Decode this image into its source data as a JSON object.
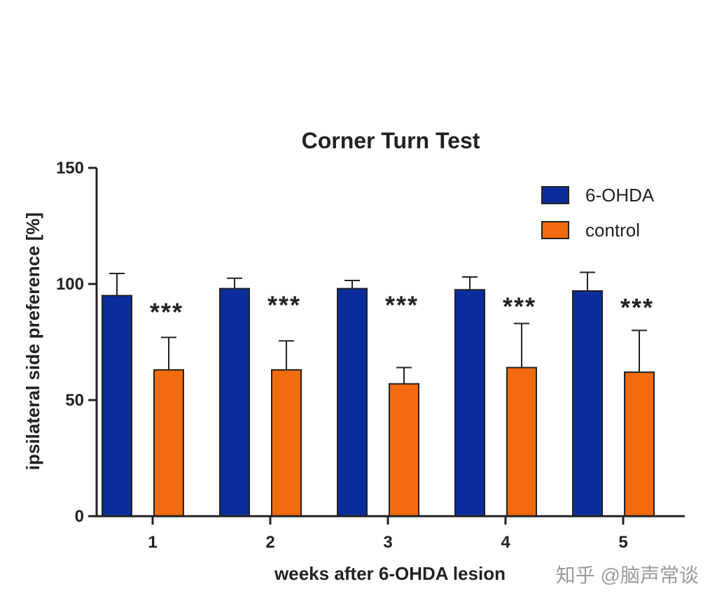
{
  "chart_data": {
    "type": "bar",
    "title": "Corner Turn Test",
    "xlabel": "weeks after 6-OHDA lesion",
    "ylabel": "ipsilateral side preference [%]",
    "ylim": [
      0,
      150
    ],
    "yticks": [
      "0",
      "50",
      "100",
      "150"
    ],
    "categories": [
      "1",
      "2",
      "3",
      "4",
      "5"
    ],
    "series": [
      {
        "name": "6-OHDA",
        "color": "#0a2d9c",
        "values": [
          95,
          98,
          98,
          97.5,
          97
        ],
        "errors": [
          9.5,
          4.5,
          3.5,
          5.5,
          8
        ]
      },
      {
        "name": "control",
        "color": "#f26b0f",
        "values": [
          63,
          63,
          57,
          64,
          62
        ],
        "errors": [
          14,
          12.5,
          7,
          19,
          18
        ]
      }
    ],
    "significance": [
      "***",
      "***",
      "***",
      "***",
      "***"
    ],
    "legend_position": "top-right"
  },
  "watermark": "知乎 @脑声常谈"
}
